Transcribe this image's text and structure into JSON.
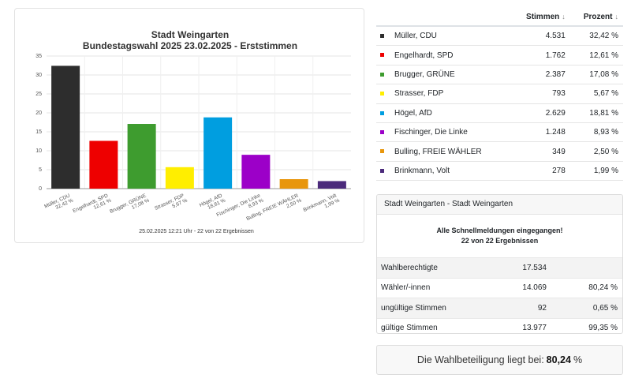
{
  "chart_data": {
    "type": "bar",
    "title": "Stadt Weingarten",
    "subtitle": "Bundestagswahl 2025 23.02.2025  - Erststimmen",
    "footer": "25.02.2025 12:21 Uhr - 22 von 22 Ergebnissen",
    "categories": [
      "Müller, CDU",
      "Engelhardt, SPD",
      "Brugger, GRÜNE",
      "Strasser, FDP",
      "Högel, AfD",
      "Fischinger, Die Linke",
      "Bulling, FREIE WÄHLER",
      "Brinkmann, Volt"
    ],
    "category_percent_labels": [
      "32,42 %",
      "12,61 %",
      "17,08 %",
      "5,67 %",
      "18,81 %",
      "8,93 %",
      "2,50 %",
      "1,99 %"
    ],
    "values": [
      32.42,
      12.61,
      17.08,
      5.67,
      18.81,
      8.93,
      2.5,
      1.99
    ],
    "colors": [
      "#2d2d2d",
      "#ee0000",
      "#3e9c2f",
      "#ffee00",
      "#009ee0",
      "#9c00c8",
      "#e8960c",
      "#4b2a7b"
    ],
    "ylim": [
      0,
      35
    ],
    "yticks": [
      0,
      5,
      10,
      15,
      20,
      25,
      30,
      35
    ],
    "grid": true,
    "xlabel": "",
    "ylabel": ""
  },
  "results": {
    "headers": {
      "stimmen": "Stimmen",
      "prozent": "Prozent"
    },
    "sort_icon": "↓",
    "rows": [
      {
        "name": "Müller, CDU",
        "votes": "4.531",
        "percent": "32,42 %",
        "color": "#2d2d2d"
      },
      {
        "name": "Engelhardt, SPD",
        "votes": "1.762",
        "percent": "12,61 %",
        "color": "#ee0000"
      },
      {
        "name": "Brugger, GRÜNE",
        "votes": "2.387",
        "percent": "17,08 %",
        "color": "#3e9c2f"
      },
      {
        "name": "Strasser, FDP",
        "votes": "793",
        "percent": "5,67 %",
        "color": "#ffee00"
      },
      {
        "name": "Högel, AfD",
        "votes": "2.629",
        "percent": "18,81 %",
        "color": "#009ee0"
      },
      {
        "name": "Fischinger, Die Linke",
        "votes": "1.248",
        "percent": "8,93 %",
        "color": "#9c00c8"
      },
      {
        "name": "Bulling, FREIE WÄHLER",
        "votes": "349",
        "percent": "2,50 %",
        "color": "#e8960c"
      },
      {
        "name": "Brinkmann, Volt",
        "votes": "278",
        "percent": "1,99 %",
        "color": "#4b2a7b"
      }
    ]
  },
  "stats": {
    "header": "Stadt Weingarten - Stadt Weingarten",
    "notice_line1": "Alle Schnellmeldungen eingegangen!",
    "notice_line2": "22 von 22 Ergebnissen",
    "rows": [
      {
        "label": "Wahlberechtigte",
        "value": "17.534",
        "percent": ""
      },
      {
        "label": "Wähler/-innen",
        "value": "14.069",
        "percent": "80,24 %"
      },
      {
        "label": "ungültige Stimmen",
        "value": "92",
        "percent": "0,65 %"
      },
      {
        "label": "gültige Stimmen",
        "value": "13.977",
        "percent": "99,35 %"
      }
    ]
  },
  "turnout": {
    "prefix": "Die Wahlbeteiligung liegt bei:",
    "value": "80,24",
    "suffix": "%"
  }
}
